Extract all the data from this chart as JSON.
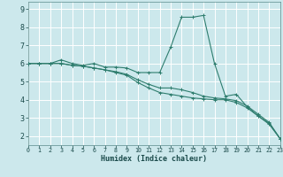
{
  "xlabel": "Humidex (Indice chaleur)",
  "bg_color": "#cce8ec",
  "grid_color": "#ffffff",
  "line_color": "#2e7d6e",
  "x_values": [
    0,
    1,
    2,
    3,
    4,
    5,
    6,
    7,
    8,
    9,
    10,
    11,
    12,
    13,
    14,
    15,
    16,
    17,
    18,
    19,
    20,
    21,
    22,
    23
  ],
  "line1": [
    6.0,
    6.0,
    6.0,
    6.2,
    6.0,
    5.9,
    6.0,
    5.8,
    5.8,
    5.75,
    5.5,
    5.5,
    5.5,
    6.9,
    8.55,
    8.55,
    8.65,
    6.0,
    4.2,
    4.3,
    3.6,
    3.1,
    2.7,
    1.85
  ],
  "line2": [
    6.0,
    6.0,
    6.0,
    6.0,
    5.9,
    5.85,
    5.75,
    5.65,
    5.55,
    5.4,
    5.1,
    4.85,
    4.65,
    4.65,
    4.55,
    4.4,
    4.2,
    4.1,
    4.05,
    3.95,
    3.65,
    3.2,
    2.75,
    1.85
  ],
  "line3": [
    6.0,
    6.0,
    6.0,
    6.0,
    5.9,
    5.85,
    5.75,
    5.65,
    5.5,
    5.35,
    4.95,
    4.65,
    4.4,
    4.3,
    4.2,
    4.1,
    4.05,
    4.0,
    4.0,
    3.85,
    3.55,
    3.1,
    2.65,
    1.85
  ],
  "xlim": [
    0,
    23
  ],
  "ylim": [
    1.5,
    9.4
  ],
  "yticks": [
    2,
    3,
    4,
    5,
    6,
    7,
    8,
    9
  ],
  "xticks": [
    0,
    1,
    2,
    3,
    4,
    5,
    6,
    7,
    8,
    9,
    10,
    11,
    12,
    13,
    14,
    15,
    16,
    17,
    18,
    19,
    20,
    21,
    22,
    23
  ],
  "marker": "+",
  "markersize": 3,
  "linewidth": 0.8
}
